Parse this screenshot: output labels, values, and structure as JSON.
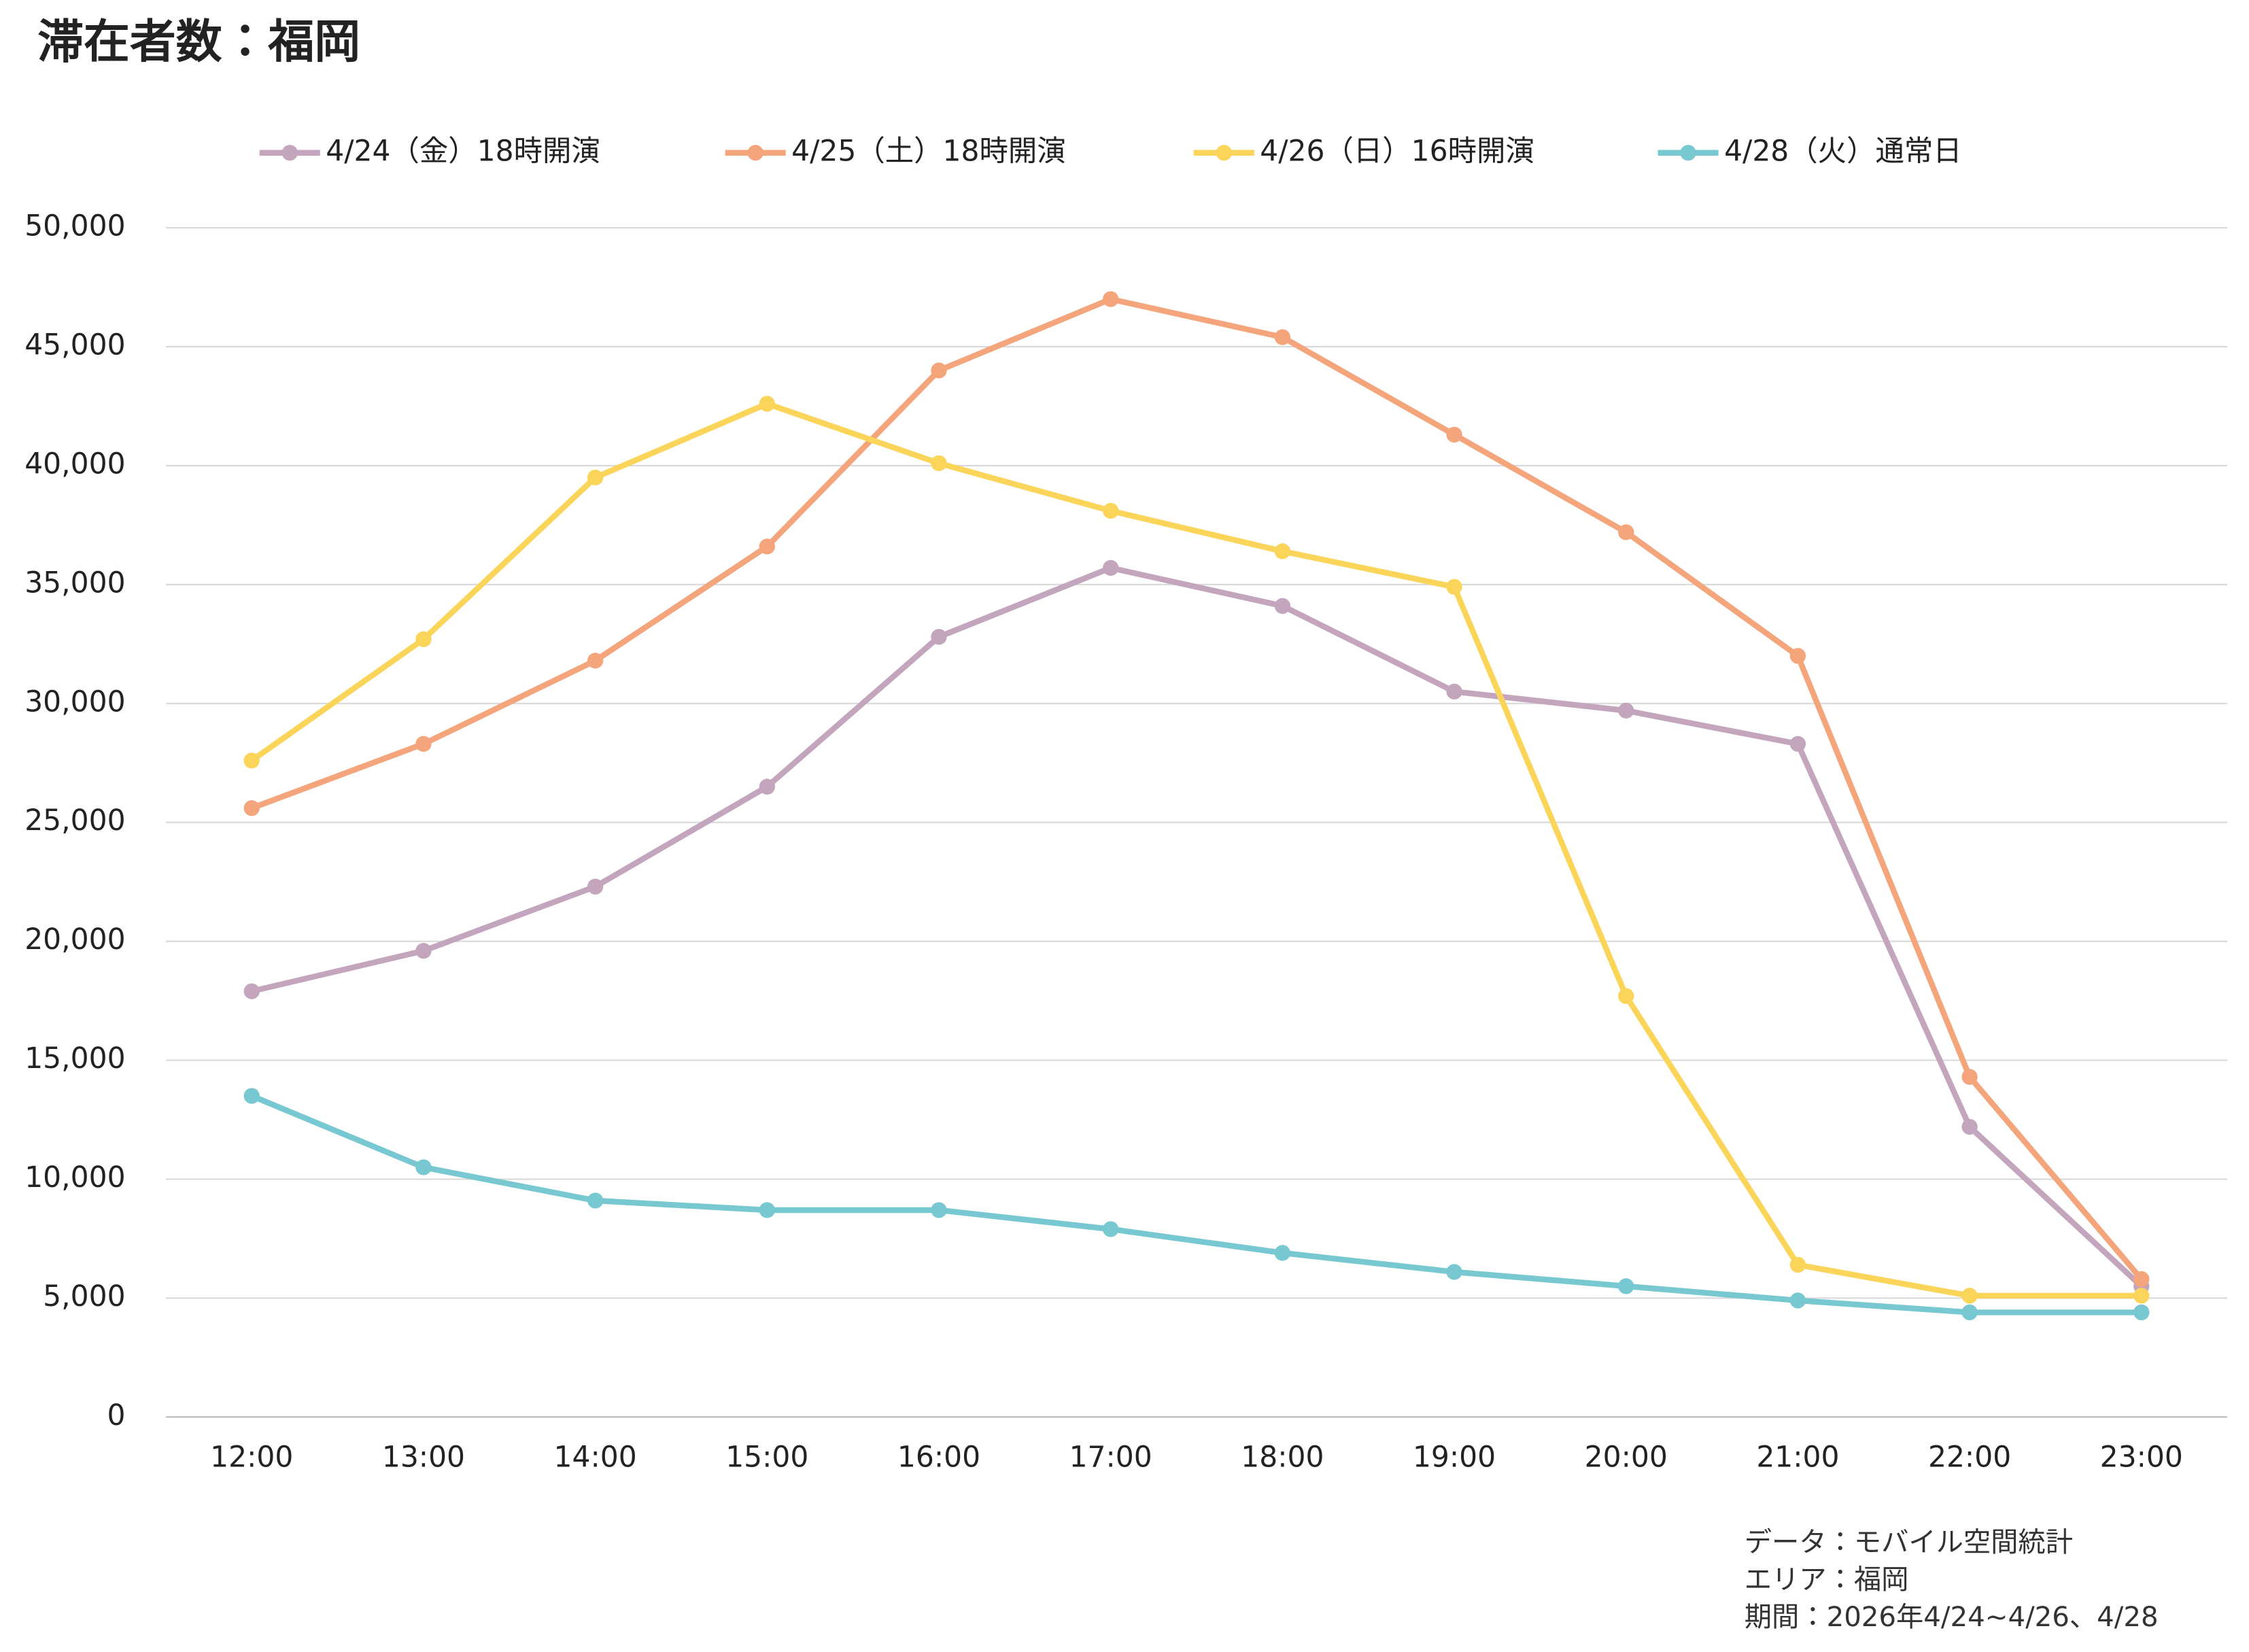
{
  "chart_data": {
    "type": "line",
    "title": "滞在者数：福岡",
    "categories": [
      "12:00",
      "13:00",
      "14:00",
      "15:00",
      "16:00",
      "17:00",
      "18:00",
      "19:00",
      "20:00",
      "21:00",
      "22:00",
      "23:00"
    ],
    "series": [
      {
        "name": "4/24（金）18時開演",
        "color": "#c3a6bd",
        "values": [
          17900,
          19600,
          22300,
          26500,
          32800,
          35700,
          34100,
          30500,
          29700,
          28300,
          12200,
          5500
        ]
      },
      {
        "name": "4/25（土）18時開演",
        "color": "#f4a57c",
        "values": [
          25600,
          28300,
          31800,
          36600,
          44000,
          47000,
          45400,
          41300,
          37200,
          32000,
          14300,
          5800
        ]
      },
      {
        "name": "4/26（日）16時開演",
        "color": "#fbd55a",
        "values": [
          27600,
          32700,
          39500,
          42600,
          40100,
          38100,
          36400,
          34900,
          17700,
          6400,
          5100,
          5100
        ]
      },
      {
        "name": "4/28（火）通常日",
        "color": "#78c8d2",
        "values": [
          13500,
          10500,
          9100,
          8700,
          8700,
          7900,
          6900,
          6100,
          5500,
          4900,
          4400,
          4400
        ]
      }
    ],
    "ylim": [
      0,
      50000
    ],
    "yticks": [
      0,
      {
        "value": 5000,
        "label": "5,000"
      },
      {
        "value": 10000,
        "label": "10,000"
      },
      {
        "value": 15000,
        "label": "15,000"
      },
      {
        "value": 20000,
        "label": "20,000"
      },
      {
        "value": 25000,
        "label": "25,000"
      },
      {
        "value": 30000,
        "label": "30,000"
      },
      {
        "value": 35000,
        "label": "35,000"
      },
      {
        "value": 40000,
        "label": "40,000"
      },
      {
        "value": 45000,
        "label": "45,000"
      },
      {
        "value": 50000,
        "label": "50,000"
      }
    ],
    "grid": true,
    "legend": "top",
    "notes": [
      "データ：モバイル空間統計",
      "エリア：福岡",
      "期間：2026年4/24~4/26、4/28"
    ]
  }
}
